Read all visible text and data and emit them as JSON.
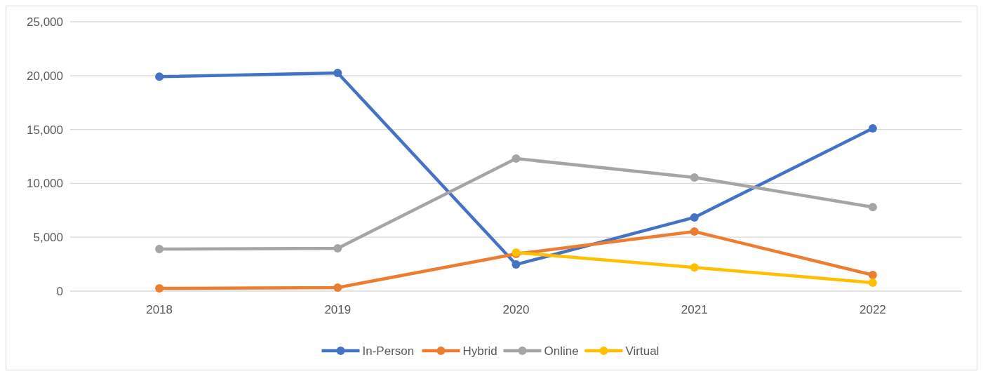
{
  "chart_data": {
    "type": "line",
    "categories": [
      "2018",
      "2019",
      "2020",
      "2021",
      "2022"
    ],
    "series": [
      {
        "name": "In-Person",
        "color": "#4472c4",
        "values": [
          19900,
          20250,
          2470,
          6840,
          15100
        ]
      },
      {
        "name": "Hybrid",
        "color": "#ed7d31",
        "values": [
          260,
          330,
          3450,
          5530,
          1500
        ]
      },
      {
        "name": "Online",
        "color": "#a5a5a5",
        "values": [
          3900,
          3970,
          12300,
          10550,
          7800
        ]
      },
      {
        "name": "Virtual",
        "color": "#ffc000",
        "values": [
          null,
          null,
          3580,
          2200,
          780
        ]
      }
    ],
    "ylim": [
      0,
      25000
    ],
    "yticks": [
      {
        "value": 0,
        "label": "0"
      },
      {
        "value": 5000,
        "label": "5,000"
      },
      {
        "value": 10000,
        "label": "10,000"
      },
      {
        "value": 15000,
        "label": "15,000"
      },
      {
        "value": 20000,
        "label": "20,000"
      },
      {
        "value": 25000,
        "label": "25,000"
      }
    ],
    "grid": "y",
    "legend": "bottom",
    "marker": "circle",
    "line_style": "solid"
  }
}
